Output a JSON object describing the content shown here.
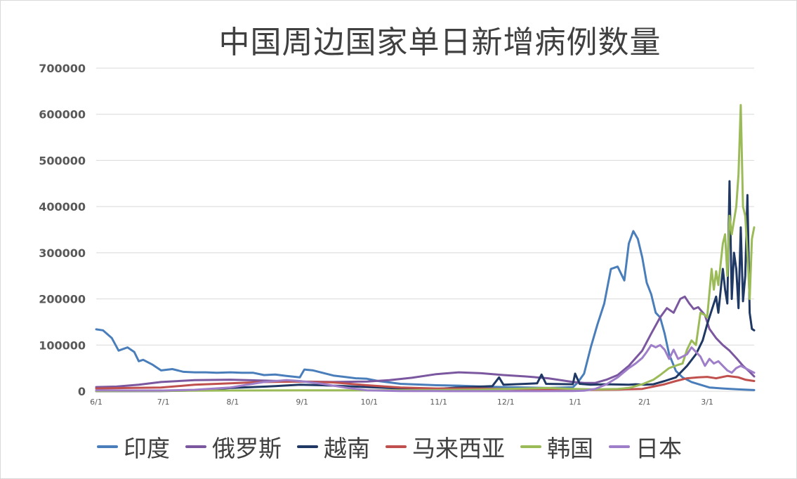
{
  "chart_data": {
    "type": "line",
    "title": "中国周边国家单日新增病例数量",
    "xlabel": "",
    "ylabel": "",
    "ylim": [
      0,
      700000
    ],
    "yticks": [
      "0",
      "100000",
      "200000",
      "300000",
      "400000",
      "500000",
      "600000",
      "700000"
    ],
    "xticks": [
      "6/1",
      "7/1",
      "8/1",
      "9/1",
      "10/1",
      "11/1",
      "12/1",
      "1/1",
      "2/1",
      "3/1"
    ],
    "x_domain": [
      "6/1",
      "3/22"
    ],
    "grid": "horizontal",
    "legend_position": "bottom",
    "series": [
      {
        "name": "印度",
        "color": "#4a7ebb",
        "points": [
          [
            "6/1",
            134000
          ],
          [
            "6/4",
            132000
          ],
          [
            "6/8",
            115000
          ],
          [
            "6/11",
            88000
          ],
          [
            "6/15",
            95000
          ],
          [
            "6/18",
            85000
          ],
          [
            "6/20",
            65000
          ],
          [
            "6/22",
            68000
          ],
          [
            "6/26",
            58000
          ],
          [
            "6/30",
            45000
          ],
          [
            "7/5",
            48000
          ],
          [
            "7/10",
            42000
          ],
          [
            "7/15",
            41000
          ],
          [
            "7/20",
            41000
          ],
          [
            "7/25",
            40000
          ],
          [
            "7/31",
            41000
          ],
          [
            "8/5",
            40000
          ],
          [
            "8/10",
            40000
          ],
          [
            "8/15",
            35000
          ],
          [
            "8/20",
            36000
          ],
          [
            "8/25",
            33000
          ],
          [
            "8/31",
            30000
          ],
          [
            "9/2",
            47000
          ],
          [
            "9/6",
            45000
          ],
          [
            "9/10",
            40000
          ],
          [
            "9/15",
            34000
          ],
          [
            "9/20",
            31000
          ],
          [
            "9/25",
            28000
          ],
          [
            "9/30",
            27000
          ],
          [
            "10/5",
            22000
          ],
          [
            "10/10",
            19000
          ],
          [
            "10/15",
            16000
          ],
          [
            "10/20",
            15000
          ],
          [
            "10/25",
            14000
          ],
          [
            "10/31",
            13000
          ],
          [
            "11/10",
            12000
          ],
          [
            "11/20",
            10000
          ],
          [
            "11/30",
            9000
          ],
          [
            "12/10",
            8000
          ],
          [
            "12/20",
            7000
          ],
          [
            "12/31",
            8500
          ],
          [
            "1/2",
            18000
          ],
          [
            "1/5",
            38000
          ],
          [
            "1/8",
            95000
          ],
          [
            "1/11",
            145000
          ],
          [
            "1/14",
            190000
          ],
          [
            "1/17",
            265000
          ],
          [
            "1/20",
            270000
          ],
          [
            "1/23",
            240000
          ],
          [
            "1/25",
            320000
          ],
          [
            "1/27",
            347000
          ],
          [
            "1/29",
            330000
          ],
          [
            "1/31",
            290000
          ],
          [
            "2/2",
            235000
          ],
          [
            "2/4",
            210000
          ],
          [
            "2/6",
            170000
          ],
          [
            "2/8",
            160000
          ],
          [
            "2/10",
            125000
          ],
          [
            "2/12",
            80000
          ],
          [
            "2/15",
            44000
          ],
          [
            "2/18",
            30000
          ],
          [
            "2/22",
            20000
          ],
          [
            "2/26",
            14000
          ],
          [
            "3/2",
            8000
          ],
          [
            "3/8",
            6000
          ],
          [
            "3/15",
            4000
          ],
          [
            "3/22",
            2500
          ]
        ]
      },
      {
        "name": "俄罗斯",
        "color": "#7b579f",
        "points": [
          [
            "6/1",
            9000
          ],
          [
            "6/10",
            10000
          ],
          [
            "6/20",
            14000
          ],
          [
            "6/30",
            20000
          ],
          [
            "7/15",
            24000
          ],
          [
            "7/31",
            25000
          ],
          [
            "8/15",
            23000
          ],
          [
            "8/31",
            21000
          ],
          [
            "9/15",
            20000
          ],
          [
            "9/30",
            21000
          ],
          [
            "10/10",
            24000
          ],
          [
            "10/20",
            29000
          ],
          [
            "10/31",
            37000
          ],
          [
            "11/10",
            41000
          ],
          [
            "11/20",
            39000
          ],
          [
            "11/30",
            35000
          ],
          [
            "12/10",
            32000
          ],
          [
            "12/20",
            28000
          ],
          [
            "12/31",
            20000
          ],
          [
            "1/5",
            18000
          ],
          [
            "1/10",
            18000
          ],
          [
            "1/15",
            25000
          ],
          [
            "1/20",
            35000
          ],
          [
            "1/25",
            55000
          ],
          [
            "1/31",
            88000
          ],
          [
            "2/4",
            125000
          ],
          [
            "2/8",
            160000
          ],
          [
            "2/11",
            180000
          ],
          [
            "2/14",
            170000
          ],
          [
            "2/17",
            200000
          ],
          [
            "2/19",
            205000
          ],
          [
            "2/21",
            190000
          ],
          [
            "2/23",
            178000
          ],
          [
            "2/25",
            182000
          ],
          [
            "2/28",
            165000
          ],
          [
            "3/2",
            135000
          ],
          [
            "3/5",
            115000
          ],
          [
            "3/8",
            100000
          ],
          [
            "3/11",
            88000
          ],
          [
            "3/14",
            72000
          ],
          [
            "3/17",
            55000
          ],
          [
            "3/20",
            42000
          ],
          [
            "3/22",
            32000
          ]
        ]
      },
      {
        "name": "越南",
        "color": "#1f3864",
        "points": [
          [
            "6/1",
            200
          ],
          [
            "6/30",
            500
          ],
          [
            "7/10",
            1000
          ],
          [
            "7/20",
            3000
          ],
          [
            "7/31",
            7000
          ],
          [
            "8/10",
            9000
          ],
          [
            "8/20",
            11000
          ],
          [
            "8/31",
            14000
          ],
          [
            "9/10",
            13000
          ],
          [
            "9/20",
            11000
          ],
          [
            "9/30",
            9000
          ],
          [
            "10/10",
            7000
          ],
          [
            "10/20",
            5000
          ],
          [
            "10/31",
            5000
          ],
          [
            "11/10",
            8000
          ],
          [
            "11/20",
            10000
          ],
          [
            "11/25",
            11000
          ],
          [
            "11/28",
            30000
          ],
          [
            "11/30",
            14000
          ],
          [
            "12/10",
            16000
          ],
          [
            "12/15",
            17000
          ],
          [
            "12/17",
            36000
          ],
          [
            "12/19",
            16000
          ],
          [
            "12/31",
            15000
          ],
          [
            "1/1",
            38000
          ],
          [
            "1/3",
            16000
          ],
          [
            "1/8",
            14000
          ],
          [
            "1/15",
            15000
          ],
          [
            "1/25",
            14000
          ],
          [
            "1/28",
            15000
          ],
          [
            "2/1",
            14000
          ],
          [
            "2/5",
            15000
          ],
          [
            "2/10",
            22000
          ],
          [
            "2/15",
            30000
          ],
          [
            "2/20",
            55000
          ],
          [
            "2/24",
            80000
          ],
          [
            "2/27",
            110000
          ],
          [
            "3/1",
            145000
          ],
          [
            "3/3",
            175000
          ],
          [
            "3/5",
            205000
          ],
          [
            "3/6",
            170000
          ],
          [
            "3/8",
            265000
          ],
          [
            "3/9",
            220000
          ],
          [
            "3/10",
            190000
          ],
          [
            "3/11",
            455000
          ],
          [
            "3/12",
            200000
          ],
          [
            "3/13",
            300000
          ],
          [
            "3/14",
            265000
          ],
          [
            "3/15",
            180000
          ],
          [
            "3/16",
            355000
          ],
          [
            "3/17",
            195000
          ],
          [
            "3/18",
            250000
          ],
          [
            "3/19",
            425000
          ],
          [
            "3/20",
            170000
          ],
          [
            "3/21",
            135000
          ],
          [
            "3/22",
            132000
          ]
        ]
      },
      {
        "name": "马来西亚",
        "color": "#c0504d",
        "points": [
          [
            "6/1",
            6000
          ],
          [
            "6/15",
            7000
          ],
          [
            "6/30",
            8000
          ],
          [
            "7/15",
            14000
          ],
          [
            "7/31",
            17000
          ],
          [
            "8/15",
            20000
          ],
          [
            "8/31",
            21000
          ],
          [
            "9/15",
            19000
          ],
          [
            "9/30",
            13000
          ],
          [
            "10/15",
            8000
          ],
          [
            "10/31",
            6000
          ],
          [
            "11/15",
            6000
          ],
          [
            "11/30",
            5000
          ],
          [
            "12/15",
            4000
          ],
          [
            "12/31",
            3000
          ],
          [
            "1/10",
            3000
          ],
          [
            "1/20",
            3500
          ],
          [
            "1/31",
            5000
          ],
          [
            "2/5",
            10000
          ],
          [
            "2/10",
            15000
          ],
          [
            "2/15",
            22000
          ],
          [
            "2/20",
            28000
          ],
          [
            "2/25",
            30000
          ],
          [
            "3/1",
            31000
          ],
          [
            "3/5",
            28000
          ],
          [
            "3/10",
            33000
          ],
          [
            "3/15",
            30000
          ],
          [
            "3/18",
            25000
          ],
          [
            "3/22",
            22000
          ]
        ]
      },
      {
        "name": "韩国",
        "color": "#9bbb59",
        "points": [
          [
            "6/1",
            500
          ],
          [
            "7/1",
            800
          ],
          [
            "8/1",
            1500
          ],
          [
            "9/1",
            2000
          ],
          [
            "10/1",
            2000
          ],
          [
            "11/1",
            2500
          ],
          [
            "11/20",
            3500
          ],
          [
            "12/10",
            6000
          ],
          [
            "12/20",
            7000
          ],
          [
            "12/31",
            5000
          ],
          [
            "1/10",
            4000
          ],
          [
            "1/20",
            5000
          ],
          [
            "1/25",
            7000
          ],
          [
            "1/31",
            15000
          ],
          [
            "2/5",
            25000
          ],
          [
            "2/8",
            35000
          ],
          [
            "2/12",
            50000
          ],
          [
            "2/16",
            57000
          ],
          [
            "2/18",
            60000
          ],
          [
            "2/20",
            90000
          ],
          [
            "2/22",
            110000
          ],
          [
            "2/24",
            100000
          ],
          [
            "2/26",
            170000
          ],
          [
            "2/28",
            165000
          ],
          [
            "3/1",
            160000
          ],
          [
            "3/3",
            265000
          ],
          [
            "3/4",
            220000
          ],
          [
            "3/5",
            260000
          ],
          [
            "3/6",
            230000
          ],
          [
            "3/8",
            320000
          ],
          [
            "3/9",
            340000
          ],
          [
            "3/10",
            250000
          ],
          [
            "3/11",
            380000
          ],
          [
            "3/12",
            340000
          ],
          [
            "3/14",
            400000
          ],
          [
            "3/15",
            470000
          ],
          [
            "3/16",
            620000
          ],
          [
            "3/17",
            400000
          ],
          [
            "3/18",
            380000
          ],
          [
            "3/19",
            300000
          ],
          [
            "3/20",
            200000
          ],
          [
            "3/21",
            330000
          ],
          [
            "3/22",
            355000
          ]
        ]
      },
      {
        "name": "日本",
        "color": "#9e7ec8",
        "points": [
          [
            "6/1",
            2000
          ],
          [
            "6/15",
            1500
          ],
          [
            "7/1",
            1500
          ],
          [
            "7/15",
            3000
          ],
          [
            "7/31",
            8000
          ],
          [
            "8/15",
            20000
          ],
          [
            "8/25",
            24000
          ],
          [
            "8/31",
            22000
          ],
          [
            "9/10",
            16000
          ],
          [
            "9/20",
            8000
          ],
          [
            "9/30",
            2000
          ],
          [
            "10/15",
            500
          ],
          [
            "10/31",
            300
          ],
          [
            "11/15",
            200
          ],
          [
            "11/30",
            150
          ],
          [
            "12/15",
            200
          ],
          [
            "12/31",
            500
          ],
          [
            "1/5",
            1000
          ],
          [
            "1/10",
            5000
          ],
          [
            "1/15",
            15000
          ],
          [
            "1/20",
            30000
          ],
          [
            "1/25",
            50000
          ],
          [
            "1/28",
            60000
          ],
          [
            "1/31",
            72000
          ],
          [
            "2/2",
            85000
          ],
          [
            "2/4",
            100000
          ],
          [
            "2/6",
            95000
          ],
          [
            "2/8",
            100000
          ],
          [
            "2/10",
            90000
          ],
          [
            "2/12",
            70000
          ],
          [
            "2/14",
            90000
          ],
          [
            "2/16",
            70000
          ],
          [
            "2/18",
            75000
          ],
          [
            "2/20",
            80000
          ],
          [
            "2/22",
            95000
          ],
          [
            "2/24",
            85000
          ],
          [
            "2/26",
            75000
          ],
          [
            "2/28",
            55000
          ],
          [
            "3/2",
            70000
          ],
          [
            "3/4",
            60000
          ],
          [
            "3/6",
            65000
          ],
          [
            "3/8",
            55000
          ],
          [
            "3/10",
            45000
          ],
          [
            "3/12",
            40000
          ],
          [
            "3/14",
            50000
          ],
          [
            "3/16",
            55000
          ],
          [
            "3/18",
            50000
          ],
          [
            "3/20",
            45000
          ],
          [
            "3/22",
            40000
          ]
        ]
      }
    ]
  }
}
